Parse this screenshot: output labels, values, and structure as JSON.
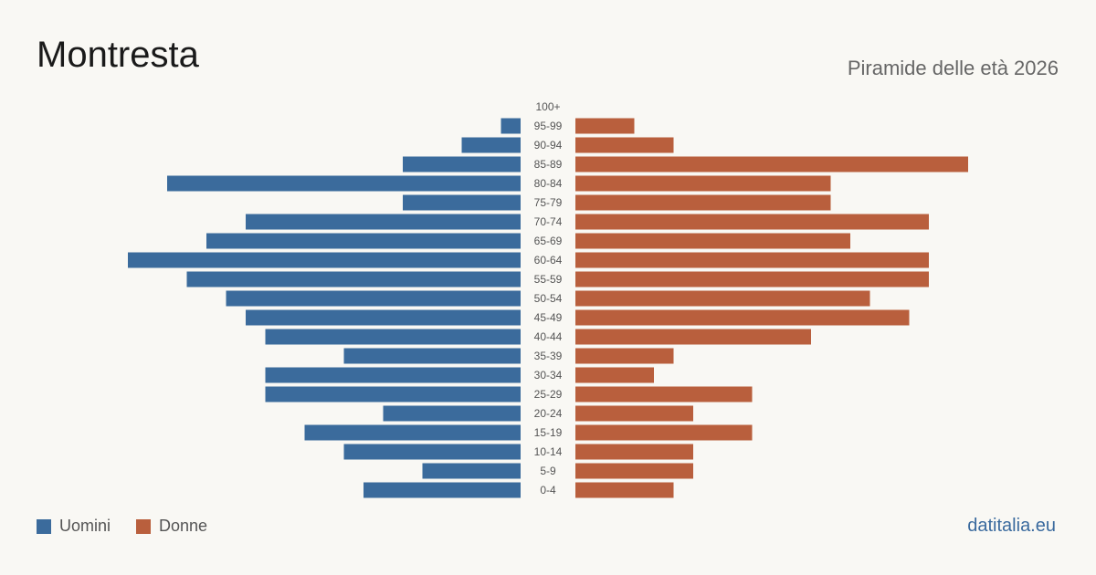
{
  "header": {
    "title": "Montresta",
    "subtitle": "Piramide delle età 2026"
  },
  "legend": {
    "men_label": "Uomini",
    "women_label": "Donne"
  },
  "footer": {
    "source": "datitalia.eu"
  },
  "colors": {
    "men": "#3b6b9c",
    "women": "#b95f3d"
  },
  "chart_data": {
    "type": "bar",
    "orientation": "horizontal-pyramid",
    "title": "Montresta",
    "subtitle": "Piramide delle età 2026",
    "categories": [
      "100+",
      "95-99",
      "90-94",
      "85-89",
      "80-84",
      "75-79",
      "70-74",
      "65-69",
      "60-64",
      "55-59",
      "50-54",
      "45-49",
      "40-44",
      "35-39",
      "30-34",
      "25-29",
      "20-24",
      "15-19",
      "10-14",
      "5-9",
      "0-4"
    ],
    "series": [
      {
        "name": "Uomini",
        "values": [
          0,
          1,
          3,
          6,
          18,
          6,
          14,
          16,
          20,
          17,
          15,
          14,
          13,
          9,
          13,
          13,
          7,
          11,
          9,
          5,
          8
        ]
      },
      {
        "name": "Donne",
        "values": [
          0,
          3,
          5,
          20,
          13,
          13,
          18,
          14,
          18,
          18,
          15,
          17,
          12,
          5,
          4,
          9,
          6,
          9,
          6,
          6,
          5
        ]
      }
    ],
    "grid": false,
    "legend_position": "bottom-left"
  }
}
